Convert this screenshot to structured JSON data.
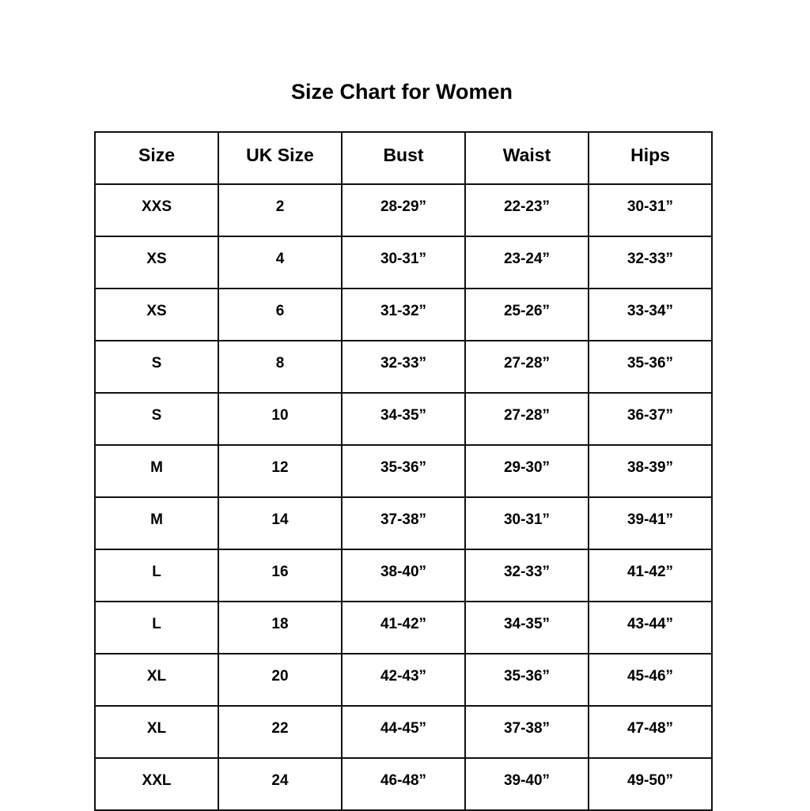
{
  "title": "Size Chart for Women",
  "headers": [
    "Size",
    "UK Size",
    "Bust",
    "Waist",
    "Hips"
  ],
  "rows": [
    [
      "XXS",
      "2",
      "28-29”",
      "22-23”",
      "30-31”"
    ],
    [
      "XS",
      "4",
      "30-31”",
      "23-24”",
      "32-33”"
    ],
    [
      "XS",
      "6",
      "31-32”",
      "25-26”",
      "33-34”"
    ],
    [
      "S",
      "8",
      "32-33”",
      "27-28”",
      "35-36”"
    ],
    [
      "S",
      "10",
      "34-35”",
      "27-28”",
      "36-37”"
    ],
    [
      "M",
      "12",
      "35-36”",
      "29-30”",
      "38-39”"
    ],
    [
      "M",
      "14",
      "37-38”",
      "30-31”",
      "39-41”"
    ],
    [
      "L",
      "16",
      "38-40”",
      "32-33”",
      "41-42”"
    ],
    [
      "L",
      "18",
      "41-42”",
      "34-35”",
      "43-44”"
    ],
    [
      "XL",
      "20",
      "42-43”",
      "35-36”",
      "45-46”"
    ],
    [
      "XL",
      "22",
      "44-45”",
      "37-38”",
      "47-48”"
    ],
    [
      "XXL",
      "24",
      "46-48”",
      "39-40”",
      "49-50”"
    ]
  ]
}
